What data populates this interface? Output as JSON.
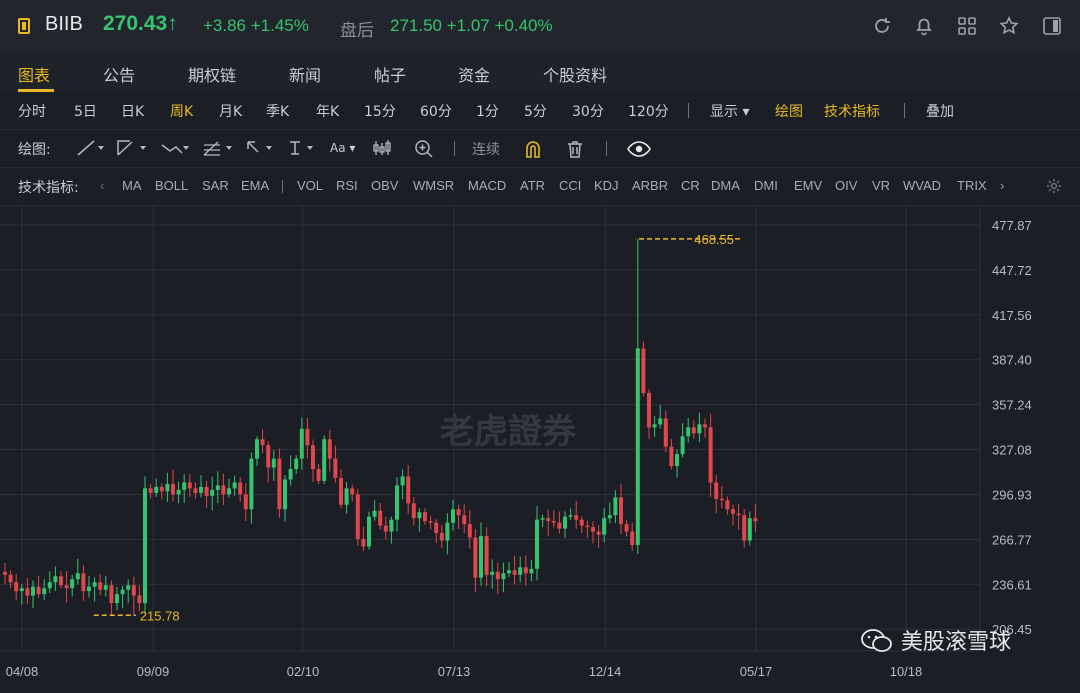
{
  "header": {
    "symbol": "BIIB",
    "price": "270.43",
    "price_arrow": "↑",
    "change": "+3.86 +1.45%",
    "after_hours_label": "盘后",
    "after_hours_value": "271.50 +1.07 +0.40%",
    "icons": [
      "refresh-icon",
      "bell-icon",
      "grid-icon",
      "star-icon",
      "sidebar-icon"
    ]
  },
  "tabs": [
    "图表",
    "公告",
    "期权链",
    "新闻",
    "帖子",
    "资金",
    "个股资料"
  ],
  "periods": [
    "分时",
    "5日",
    "日K",
    "周K",
    "月K",
    "季K",
    "年K",
    "15分",
    "60分",
    "1分",
    "5分",
    "30分",
    "120分"
  ],
  "period_active": "周K",
  "period_actions": {
    "display": "显示",
    "draw": "绘图",
    "tech": "技术指标",
    "overlay": "叠加"
  },
  "draw_tools": {
    "label": "绘图:",
    "continuous": "连续",
    "text_tool": "Aa"
  },
  "indicators": {
    "label": "技术指标:",
    "items": [
      "MA",
      "BOLL",
      "SAR",
      "EMA",
      "VOL",
      "RSI",
      "OBV",
      "WMSR",
      "MACD",
      "ATR",
      "CCI",
      "KDJ",
      "ARBR",
      "CR",
      "DMA",
      "DMI",
      "EMV",
      "OIV",
      "VR",
      "WVAD",
      "TRIX"
    ]
  },
  "watermark": {
    "logo": "老虎證券",
    "brand": "美股滚雪球"
  },
  "colors": {
    "up": "#35c46f",
    "down": "#e0474c",
    "accent": "#e8b923",
    "grid": "#2c3039"
  },
  "chart_data": {
    "type": "candlestick",
    "y_ticks": [
      477.87,
      447.72,
      417.56,
      387.4,
      357.24,
      327.08,
      296.93,
      266.77,
      236.61,
      206.45
    ],
    "x_ticks": [
      "04/08",
      "09/09",
      "02/10",
      "07/13",
      "12/14",
      "05/17",
      "10/18"
    ],
    "annotations": [
      {
        "label": "468.55",
        "value": 468.55,
        "type": "high"
      },
      {
        "label": "215.78",
        "value": 215.78,
        "type": "low"
      }
    ],
    "ylim": [
      196.0,
      487.0
    ],
    "grid": true,
    "close": [
      243,
      238,
      232,
      234,
      229,
      235,
      230,
      234,
      238,
      242,
      236,
      234,
      240,
      244,
      232,
      235,
      238,
      233,
      236,
      224,
      230,
      233,
      236,
      229,
      224,
      301,
      298,
      302,
      299,
      304,
      297,
      300,
      305,
      301,
      298,
      302,
      296,
      300,
      303,
      297,
      301,
      305,
      297,
      287,
      321,
      334,
      330,
      315,
      321,
      287,
      307,
      314,
      321,
      341,
      330,
      314,
      306,
      334,
      321,
      308,
      290,
      301,
      297,
      267,
      262,
      282,
      286,
      276,
      272,
      280,
      303,
      309,
      291,
      281,
      285,
      279,
      278,
      271,
      266,
      278,
      287,
      283,
      277,
      268,
      241,
      269,
      243,
      245,
      240,
      244,
      246,
      243,
      248,
      244,
      247,
      280,
      281,
      279,
      278,
      274,
      282,
      283,
      280,
      276,
      275,
      272,
      270,
      281,
      283,
      295,
      277,
      272,
      263,
      395,
      365,
      342,
      344,
      348,
      329,
      316,
      324,
      336,
      342,
      338,
      344,
      342,
      305,
      294,
      293,
      287,
      284,
      283,
      266,
      281,
      279
    ]
  }
}
